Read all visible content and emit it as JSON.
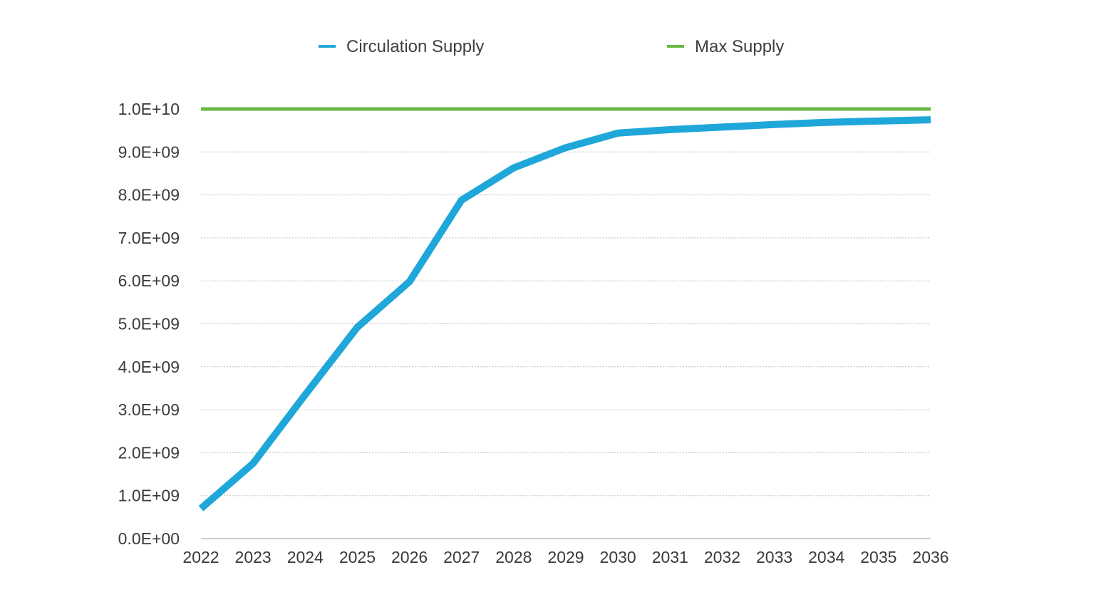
{
  "chart_data": {
    "type": "line",
    "title": "",
    "xlabel": "",
    "ylabel": "",
    "categories": [
      "2022",
      "2023",
      "2024",
      "2025",
      "2026",
      "2027",
      "2028",
      "2029",
      "2030",
      "2031",
      "2032",
      "2033",
      "2034",
      "2035",
      "2036"
    ],
    "y_ticks": [
      0,
      1000000000,
      2000000000,
      3000000000,
      4000000000,
      5000000000,
      6000000000,
      7000000000,
      8000000000,
      9000000000,
      10000000000
    ],
    "y_tick_labels": [
      "0.0E+00",
      "1.0E+09",
      "2.0E+09",
      "3.0E+09",
      "4.0E+09",
      "5.0E+09",
      "6.0E+09",
      "7.0E+09",
      "8.0E+09",
      "9.0E+09",
      "1.0E+10"
    ],
    "ylim": [
      0,
      10000000000
    ],
    "grid": "horizontal dotted",
    "legend_position": "top",
    "series": [
      {
        "name": "Circulation Supply",
        "color": "#1fa7d9",
        "values": [
          700000000,
          1750000000,
          3350000000,
          4920000000,
          5980000000,
          7880000000,
          8630000000,
          9100000000,
          9440000000,
          9520000000,
          9580000000,
          9640000000,
          9690000000,
          9720000000,
          9750000000
        ]
      },
      {
        "name": "Max Supply",
        "color": "#6ab845",
        "values": [
          10000000000,
          10000000000,
          10000000000,
          10000000000,
          10000000000,
          10000000000,
          10000000000,
          10000000000,
          10000000000,
          10000000000,
          10000000000,
          10000000000,
          10000000000,
          10000000000,
          10000000000
        ]
      }
    ]
  }
}
